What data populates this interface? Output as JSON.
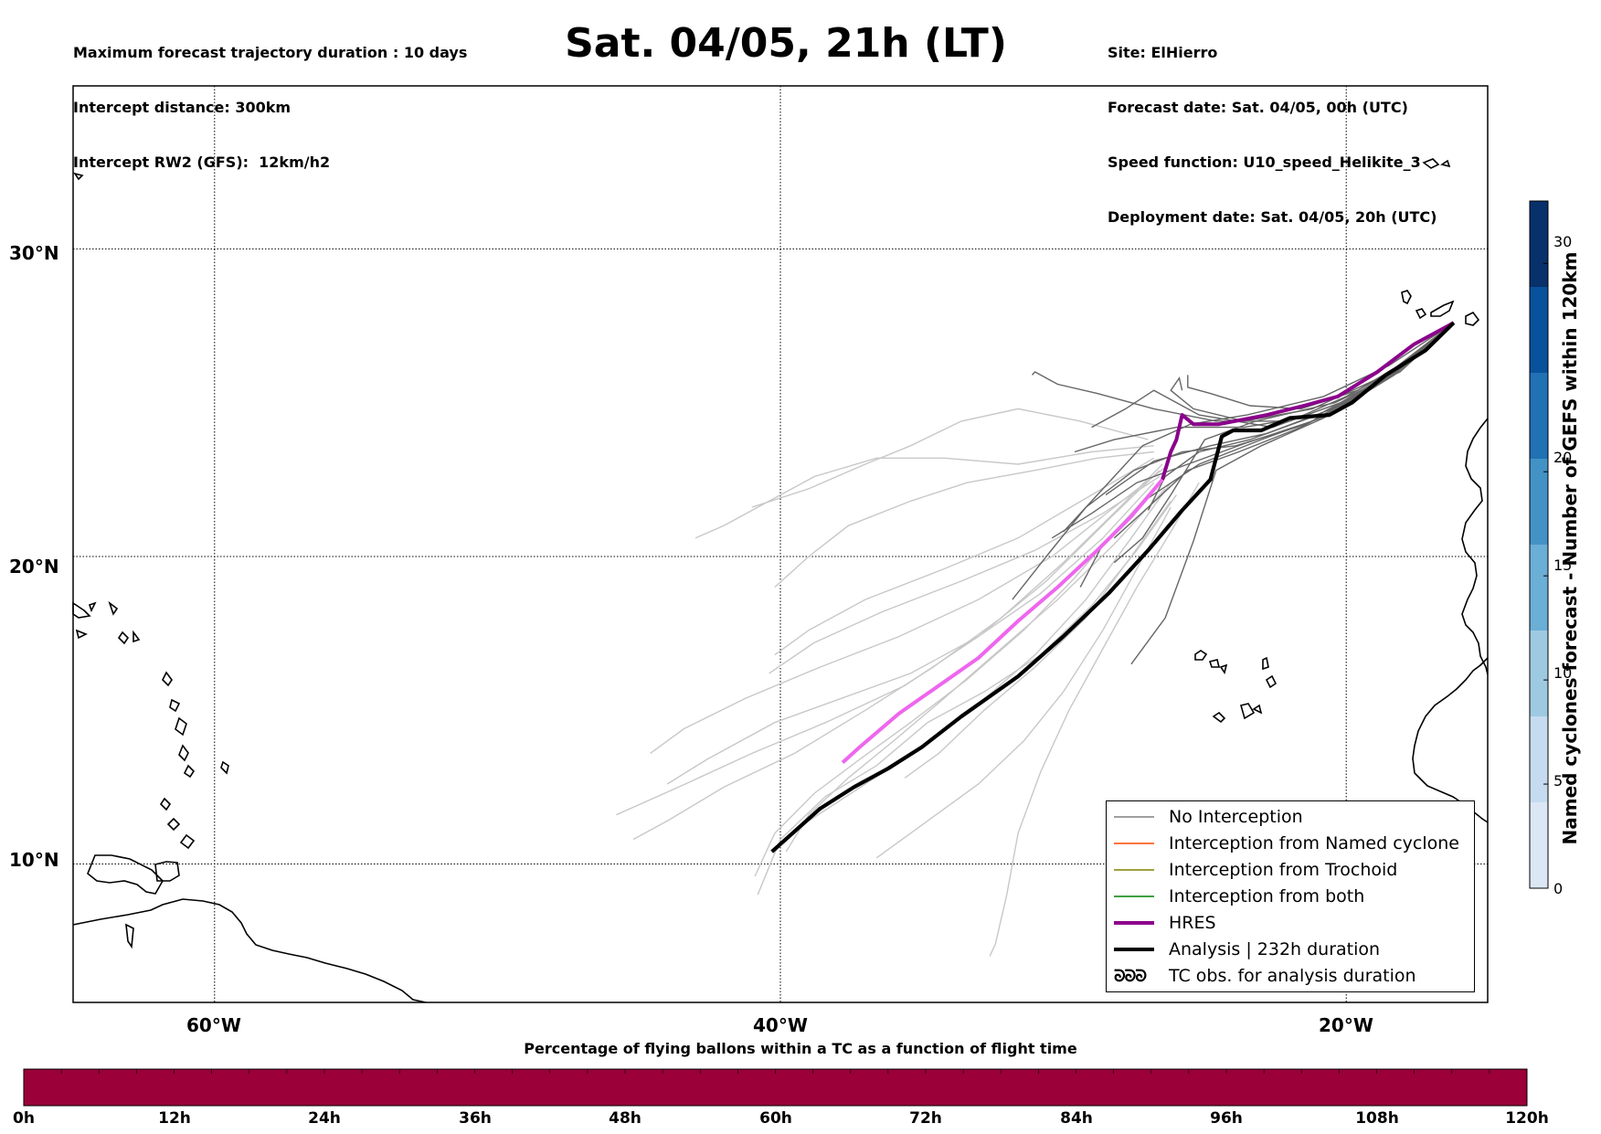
{
  "header": {
    "left_lines": [
      "Maximum forecast trajectory duration : 10 days",
      "Intercept distance: 300km",
      "Intercept RW2 (GFS):  12km/h2"
    ],
    "title": "Sat. 04/05, 21h (LT)",
    "right_lines": [
      "Site: ElHierro",
      "Forecast date: Sat. 04/05, 00h (UTC)",
      "Speed function: U10_speed_Helikite_3",
      "Deployment date: Sat. 04/05, 20h (UTC)"
    ]
  },
  "map": {
    "lat_labels": [
      "30°N",
      "20°N",
      "10°N"
    ],
    "lon_labels": [
      "60°W",
      "40°W",
      "20°W"
    ],
    "lat_range": [
      5.5,
      35.3
    ],
    "lon_range": [
      -65,
      -15
    ],
    "gridline_style": "dotted",
    "colors": {
      "ensemble_dark": "#666666",
      "ensemble_light": "#c8c8c8",
      "hres": "#8b008b",
      "hres_late": "#ee66ee",
      "analysis": "#000000"
    },
    "analysis_track": [
      [
        -16.2,
        27.6
      ],
      [
        -17.2,
        26.7
      ],
      [
        -18.6,
        25.9
      ],
      [
        -19.8,
        25.0
      ],
      [
        -20.6,
        24.6
      ],
      [
        -22.0,
        24.5
      ],
      [
        -23.0,
        24.1
      ],
      [
        -24.0,
        24.1
      ],
      [
        -24.4,
        23.9
      ],
      [
        -24.8,
        22.5
      ],
      [
        -25.8,
        21.5
      ],
      [
        -27.0,
        20.2
      ],
      [
        -28.4,
        18.8
      ],
      [
        -30.0,
        17.4
      ],
      [
        -31.6,
        16.1
      ],
      [
        -33.6,
        14.8
      ],
      [
        -35.0,
        13.8
      ],
      [
        -36.2,
        13.1
      ],
      [
        -37.4,
        12.5
      ],
      [
        -38.6,
        11.8
      ],
      [
        -40.3,
        10.4
      ]
    ],
    "hres_track_dark": [
      [
        -16.2,
        27.6
      ],
      [
        -17.6,
        26.9
      ],
      [
        -18.9,
        26.0
      ],
      [
        -20.3,
        25.2
      ],
      [
        -21.5,
        24.9
      ],
      [
        -22.8,
        24.6
      ],
      [
        -24.5,
        24.3
      ],
      [
        -25.4,
        24.3
      ],
      [
        -25.8,
        24.6
      ],
      [
        -26.0,
        23.8
      ],
      [
        -26.2,
        23.4
      ],
      [
        -26.5,
        22.5
      ]
    ],
    "hres_track_light": [
      [
        -26.5,
        22.5
      ],
      [
        -27.6,
        21.3
      ],
      [
        -28.8,
        20.2
      ],
      [
        -30.2,
        19.0
      ],
      [
        -31.6,
        17.9
      ],
      [
        -33.0,
        16.7
      ],
      [
        -34.4,
        15.8
      ],
      [
        -35.8,
        14.9
      ],
      [
        -37.2,
        13.8
      ],
      [
        -37.8,
        13.3
      ]
    ],
    "ensemble_dark": [
      [
        [
          -16.2,
          27.6
        ],
        [
          -18.5,
          26.2
        ],
        [
          -20.8,
          25.2
        ],
        [
          -23.5,
          24.6
        ],
        [
          -25.5,
          24.3
        ],
        [
          -27.2,
          23.6
        ],
        [
          -28.8,
          22.0
        ],
        [
          -30.0,
          20.8
        ]
      ],
      [
        [
          -16.2,
          27.6
        ],
        [
          -18.2,
          26.0
        ],
        [
          -20.5,
          24.8
        ],
        [
          -22.8,
          24.0
        ],
        [
          -24.8,
          23.6
        ],
        [
          -26.8,
          23.1
        ],
        [
          -28.5,
          22.0
        ]
      ],
      [
        [
          -16.2,
          27.6
        ],
        [
          -18.6,
          25.8
        ],
        [
          -21.0,
          24.6
        ],
        [
          -23.4,
          23.8
        ],
        [
          -25.2,
          23.4
        ],
        [
          -26.4,
          22.6
        ],
        [
          -27.0,
          21.5
        ]
      ],
      [
        [
          -16.2,
          27.6
        ],
        [
          -17.8,
          26.4
        ],
        [
          -19.6,
          25.4
        ],
        [
          -21.6,
          24.8
        ],
        [
          -23.4,
          24.9
        ],
        [
          -24.8,
          25.3
        ],
        [
          -25.6,
          25.5
        ],
        [
          -25.6,
          25.9
        ]
      ],
      [
        [
          -16.2,
          27.6
        ],
        [
          -18.0,
          26.2
        ],
        [
          -20.2,
          25.0
        ],
        [
          -22.6,
          24.2
        ],
        [
          -25.2,
          24.6
        ],
        [
          -26.8,
          25.4
        ],
        [
          -27.8,
          24.8
        ],
        [
          -29.0,
          24.2
        ]
      ],
      [
        [
          -16.2,
          27.6
        ],
        [
          -18.8,
          25.7
        ],
        [
          -21.2,
          24.4
        ],
        [
          -23.5,
          23.7
        ],
        [
          -25.6,
          23.0
        ],
        [
          -27.4,
          22.4
        ],
        [
          -29.0,
          21.4
        ],
        [
          -30.4,
          20.6
        ]
      ],
      [
        [
          -16.2,
          27.6
        ],
        [
          -19.0,
          25.5
        ],
        [
          -21.6,
          24.2
        ],
        [
          -23.8,
          23.4
        ],
        [
          -25.6,
          22.8
        ],
        [
          -27.0,
          21.6
        ],
        [
          -28.2,
          20.6
        ]
      ],
      [
        [
          -16.2,
          27.6
        ],
        [
          -18.4,
          25.9
        ],
        [
          -20.8,
          24.5
        ],
        [
          -23.0,
          23.6
        ],
        [
          -24.6,
          22.8
        ],
        [
          -25.4,
          20.5
        ],
        [
          -26.4,
          18.0
        ],
        [
          -27.6,
          16.5
        ]
      ],
      [
        [
          -16.2,
          27.6
        ],
        [
          -18.2,
          26.1
        ],
        [
          -20.0,
          25.2
        ],
        [
          -22.0,
          24.4
        ],
        [
          -24.6,
          24.4
        ],
        [
          -26.8,
          24.8
        ],
        [
          -28.8,
          25.3
        ],
        [
          -30.2,
          25.6
        ],
        [
          -31.0,
          26.0
        ],
        [
          -31.1,
          25.9
        ]
      ],
      [
        [
          -16.2,
          27.6
        ],
        [
          -18.7,
          25.7
        ],
        [
          -21.4,
          24.3
        ],
        [
          -23.9,
          23.6
        ],
        [
          -25.8,
          23.4
        ],
        [
          -27.5,
          22.8
        ],
        [
          -29.2,
          21.6
        ],
        [
          -30.6,
          20.0
        ],
        [
          -31.8,
          18.6
        ]
      ],
      [
        [
          -16.2,
          27.6
        ],
        [
          -18.3,
          25.9
        ],
        [
          -20.6,
          24.6
        ],
        [
          -23.0,
          23.8
        ],
        [
          -25.2,
          23.0
        ],
        [
          -27.0,
          21.9
        ],
        [
          -28.6,
          20.4
        ],
        [
          -29.4,
          19.0
        ]
      ],
      [
        [
          -16.2,
          27.6
        ],
        [
          -18.5,
          25.8
        ],
        [
          -21.0,
          24.6
        ],
        [
          -23.6,
          24.2
        ],
        [
          -26.0,
          24.2
        ],
        [
          -28.2,
          23.8
        ],
        [
          -29.6,
          23.4
        ]
      ],
      [
        [
          -16.2,
          27.6
        ],
        [
          -18.1,
          26.0
        ],
        [
          -20.4,
          25.0
        ],
        [
          -23.2,
          24.4
        ],
        [
          -25.0,
          23.8
        ],
        [
          -26.2,
          22.0
        ],
        [
          -27.2,
          20.6
        ],
        [
          -28.2,
          19.8
        ]
      ],
      [
        [
          -16.2,
          27.6
        ],
        [
          -18.6,
          25.9
        ],
        [
          -21.2,
          24.8
        ],
        [
          -23.6,
          24.4
        ],
        [
          -25.4,
          24.8
        ],
        [
          -26.2,
          25.4
        ],
        [
          -25.9,
          25.8
        ],
        [
          -25.8,
          25.4
        ]
      ]
    ],
    "ensemble_light": [
      [
        [
          -26.5,
          23.0
        ],
        [
          -28.0,
          21.6
        ],
        [
          -30.0,
          19.8
        ],
        [
          -32.2,
          18.0
        ],
        [
          -34.6,
          16.4
        ],
        [
          -37.0,
          15.0
        ],
        [
          -39.5,
          13.6
        ],
        [
          -42.0,
          12.5
        ],
        [
          -44.0,
          11.4
        ],
        [
          -45.2,
          10.8
        ]
      ],
      [
        [
          -26.6,
          22.8
        ],
        [
          -28.4,
          21.2
        ],
        [
          -30.6,
          19.2
        ],
        [
          -33.0,
          17.4
        ],
        [
          -35.6,
          15.8
        ],
        [
          -38.4,
          14.6
        ],
        [
          -41.0,
          13.6
        ],
        [
          -43.6,
          12.5
        ],
        [
          -45.8,
          11.6
        ]
      ],
      [
        [
          -26.4,
          22.6
        ],
        [
          -28.0,
          21.0
        ],
        [
          -29.6,
          19.3
        ],
        [
          -31.4,
          17.6
        ],
        [
          -33.4,
          16.0
        ],
        [
          -35.4,
          14.6
        ],
        [
          -37.2,
          13.4
        ],
        [
          -38.8,
          12.3
        ],
        [
          -40.2,
          11.0
        ],
        [
          -40.9,
          9.6
        ]
      ],
      [
        [
          -26.2,
          22.4
        ],
        [
          -27.6,
          20.6
        ],
        [
          -29.2,
          18.6
        ],
        [
          -31.0,
          16.8
        ],
        [
          -33.0,
          15.2
        ],
        [
          -35.0,
          13.8
        ],
        [
          -37.0,
          12.6
        ],
        [
          -39.0,
          11.4
        ]
      ],
      [
        [
          -26.4,
          22.9
        ],
        [
          -28.2,
          21.6
        ],
        [
          -30.4,
          20.0
        ],
        [
          -33.0,
          18.6
        ],
        [
          -35.8,
          17.4
        ],
        [
          -38.6,
          16.4
        ],
        [
          -41.2,
          15.4
        ],
        [
          -43.4,
          14.4
        ],
        [
          -44.6,
          13.6
        ]
      ],
      [
        [
          -26.8,
          23.2
        ],
        [
          -29.0,
          22.0
        ],
        [
          -31.6,
          20.6
        ],
        [
          -34.2,
          19.6
        ],
        [
          -37.0,
          18.6
        ],
        [
          -39.0,
          17.6
        ],
        [
          -40.2,
          16.8
        ]
      ],
      [
        [
          -26.8,
          23.6
        ],
        [
          -29.0,
          23.4
        ],
        [
          -31.6,
          23.0
        ],
        [
          -34.2,
          23.2
        ],
        [
          -36.6,
          23.2
        ],
        [
          -38.8,
          22.6
        ],
        [
          -40.4,
          21.8
        ],
        [
          -42.0,
          21.0
        ],
        [
          -43.0,
          20.6
        ]
      ],
      [
        [
          -27.0,
          23.8
        ],
        [
          -29.4,
          24.4
        ],
        [
          -31.6,
          24.8
        ],
        [
          -33.6,
          24.4
        ],
        [
          -35.4,
          23.6
        ],
        [
          -37.0,
          23.0
        ],
        [
          -39.0,
          22.2
        ],
        [
          -41.0,
          21.6
        ]
      ],
      [
        [
          -26.8,
          23.4
        ],
        [
          -28.8,
          23.2
        ],
        [
          -31.0,
          22.8
        ],
        [
          -33.4,
          22.4
        ],
        [
          -35.4,
          21.8
        ],
        [
          -37.6,
          21.0
        ],
        [
          -39.0,
          20.0
        ],
        [
          -40.2,
          19.0
        ]
      ],
      [
        [
          -25.2,
          22.4
        ],
        [
          -26.2,
          20.8
        ],
        [
          -27.4,
          19.0
        ],
        [
          -28.6,
          17.0
        ],
        [
          -29.8,
          15.0
        ],
        [
          -30.8,
          13.0
        ],
        [
          -31.6,
          11.0
        ],
        [
          -32.0,
          9.0
        ],
        [
          -32.4,
          7.4
        ],
        [
          -32.6,
          7.0
        ]
      ],
      [
        [
          -26.0,
          22.0
        ],
        [
          -27.4,
          20.2
        ],
        [
          -29.0,
          18.4
        ],
        [
          -30.8,
          16.8
        ],
        [
          -32.8,
          15.6
        ],
        [
          -34.8,
          14.6
        ],
        [
          -36.6,
          13.2
        ],
        [
          -38.4,
          12.2
        ],
        [
          -40.0,
          10.8
        ],
        [
          -40.8,
          9.0
        ]
      ],
      [
        [
          -26.4,
          22.2
        ],
        [
          -28.2,
          20.4
        ],
        [
          -30.2,
          18.6
        ],
        [
          -32.2,
          17.0
        ],
        [
          -34.2,
          15.4
        ],
        [
          -36.0,
          14.0
        ],
        [
          -37.6,
          12.8
        ],
        [
          -39.0,
          11.6
        ],
        [
          -39.8,
          10.4
        ]
      ],
      [
        [
          -26.2,
          21.8
        ],
        [
          -27.6,
          20.0
        ],
        [
          -29.2,
          18.0
        ],
        [
          -31.0,
          16.4
        ],
        [
          -32.8,
          15.0
        ],
        [
          -34.4,
          13.6
        ],
        [
          -35.6,
          12.8
        ]
      ],
      [
        [
          -26.8,
          22.4
        ],
        [
          -28.6,
          20.6
        ],
        [
          -30.8,
          18.8
        ],
        [
          -33.0,
          17.4
        ],
        [
          -35.4,
          16.2
        ],
        [
          -37.8,
          15.4
        ],
        [
          -40.2,
          14.6
        ],
        [
          -42.6,
          13.4
        ],
        [
          -44.0,
          12.6
        ]
      ],
      [
        [
          -26.6,
          22.6
        ],
        [
          -28.6,
          21.4
        ],
        [
          -31.0,
          20.2
        ],
        [
          -33.6,
          19.2
        ],
        [
          -36.4,
          18.2
        ],
        [
          -38.8,
          17.2
        ],
        [
          -40.4,
          16.2
        ]
      ],
      [
        [
          -26.2,
          21.6
        ],
        [
          -27.4,
          19.6
        ],
        [
          -28.6,
          17.6
        ],
        [
          -30.0,
          15.6
        ],
        [
          -31.4,
          14.0
        ],
        [
          -33.0,
          12.6
        ],
        [
          -34.8,
          11.4
        ],
        [
          -36.6,
          10.2
        ]
      ]
    ],
    "land_color": "#000000"
  },
  "legend": {
    "items": [
      {
        "label": "No Interception",
        "color": "#808080",
        "width": 1.5,
        "name": "legend-no-interception"
      },
      {
        "label": "Interception from Named cyclone",
        "color": "#ff4500",
        "width": 1.5,
        "name": "legend-named-cyclone"
      },
      {
        "label": "Interception from Trochoid",
        "color": "#808000",
        "width": 1.5,
        "name": "legend-trochoid"
      },
      {
        "label": "Interception from both",
        "color": "#008000",
        "width": 1.5,
        "name": "legend-both"
      },
      {
        "label": "HRES",
        "color": "#8b008b",
        "width": 4,
        "name": "legend-hres"
      },
      {
        "label": "Analysis | 232h duration",
        "color": "#000000",
        "width": 4,
        "name": "legend-analysis"
      }
    ],
    "tc_glyph": "ᘐᘐᘐ",
    "tc_label": "TC obs. for analysis duration"
  },
  "right_colorbar": {
    "title": "Named cyclones forecast - Number of GEFS within 120km",
    "ticks": [
      0,
      5,
      10,
      15,
      20,
      30
    ],
    "max": 33,
    "colors": [
      "#dbe7f5",
      "#c6dbef",
      "#9ecae1",
      "#6baed6",
      "#4292c6",
      "#2171b5",
      "#08519c",
      "#08306b"
    ]
  },
  "bottom_colorbar": {
    "title": "Percentage of flying ballons within a TC as a function of flight time",
    "fill_color": "#9b0039",
    "tick_labels": [
      "0h",
      "12h",
      "24h",
      "36h",
      "48h",
      "60h",
      "72h",
      "84h",
      "96h",
      "108h",
      "120h"
    ],
    "minor_segments": 40
  }
}
